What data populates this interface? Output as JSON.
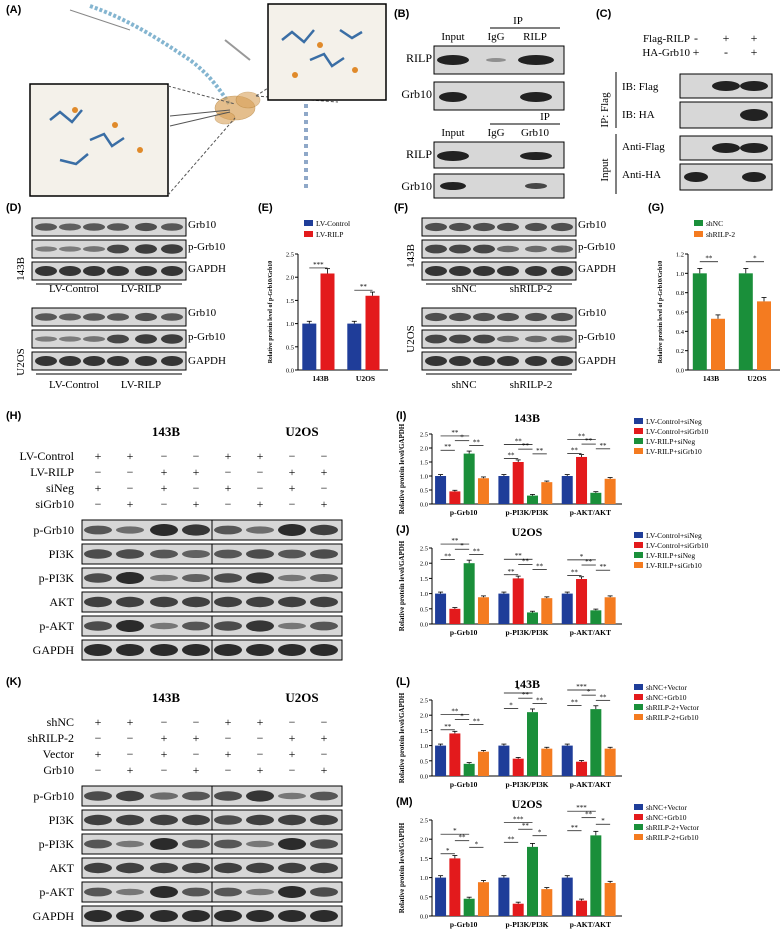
{
  "colors": {
    "blue": "#1f3d99",
    "red": "#e31a1c",
    "green": "#1a8f3a",
    "orange": "#f47b20",
    "band": "#222222",
    "membrane": "#d7d7d7"
  },
  "panel_labels": {
    "A": "(A)",
    "B": "(B)",
    "C": "(C)",
    "D": "(D)",
    "E": "(E)",
    "F": "(F)",
    "G": "(G)",
    "H": "(H)",
    "I": "(I)",
    "J": "(J)",
    "K": "(K)",
    "L": "(L)",
    "M": "(M)"
  },
  "panel_b": {
    "top": {
      "ip": "IP",
      "cols": [
        "Input",
        "IgG",
        "RILP"
      ],
      "rows": [
        "RILP",
        "Grb10"
      ]
    },
    "bottom": {
      "ip": "IP",
      "cols": [
        "Input",
        "IgG",
        "Grb10"
      ],
      "rows": [
        "RILP",
        "Grb10"
      ]
    }
  },
  "panel_c": {
    "conditions": [
      {
        "name": "Flag-RILP",
        "signs": [
          "-",
          "+",
          "+"
        ]
      },
      {
        "name": "HA-Grb10",
        "signs": [
          "+",
          "-",
          "+"
        ]
      }
    ],
    "groups": [
      {
        "name": "IP: Flag",
        "rows": [
          "IB: Flag",
          "IB: HA"
        ]
      },
      {
        "name": "Input",
        "rows": [
          "Anti-Flag",
          "Anti-HA"
        ]
      }
    ]
  },
  "panel_d": {
    "cells": [
      "143B",
      "U2OS"
    ],
    "rows": [
      "Grb10",
      "p-Grb10",
      "GAPDH"
    ],
    "groups": [
      "LV-Control",
      "LV-RILP"
    ]
  },
  "panel_f": {
    "cells": [
      "143B",
      "U2OS"
    ],
    "rows": [
      "Grb10",
      "p-Grb10",
      "GAPDH"
    ],
    "groups": [
      "shNC",
      "shRILP-2"
    ]
  },
  "panel_h": {
    "cells": [
      "143B",
      "U2OS"
    ],
    "conditions": [
      {
        "name": "LV-Control",
        "signs": [
          "+",
          "+",
          "−",
          "−"
        ]
      },
      {
        "name": "LV-RILP",
        "signs": [
          "−",
          "−",
          "+",
          "+"
        ]
      },
      {
        "name": "siNeg",
        "signs": [
          "+",
          "−",
          "+",
          "−"
        ]
      },
      {
        "name": "siGrb10",
        "signs": [
          "−",
          "+",
          "−",
          "+"
        ]
      }
    ],
    "rows": [
      "p-Grb10",
      "PI3K",
      "p-PI3K",
      "AKT",
      "p-AKT",
      "GAPDH"
    ]
  },
  "panel_k": {
    "cells": [
      "143B",
      "U2OS"
    ],
    "conditions": [
      {
        "name": "shNC",
        "signs": [
          "+",
          "+",
          "−",
          "−"
        ]
      },
      {
        "name": "shRILP-2",
        "signs": [
          "−",
          "−",
          "+",
          "+"
        ]
      },
      {
        "name": "Vector",
        "signs": [
          "+",
          "−",
          "+",
          "−"
        ]
      },
      {
        "name": "Grb10",
        "signs": [
          "−",
          "+",
          "−",
          "+"
        ]
      }
    ],
    "rows": [
      "p-Grb10",
      "PI3K",
      "p-PI3K",
      "AKT",
      "p-AKT",
      "GAPDH"
    ]
  },
  "chart_data": [
    {
      "id": "E",
      "type": "bar",
      "title": "",
      "ylabel": "Relative protein level of p-Grb10/Grb10",
      "categories": [
        "143B",
        "U2OS"
      ],
      "series": [
        {
          "name": "LV-Control",
          "values": [
            1.0,
            1.0
          ]
        },
        {
          "name": "LV-RILP",
          "values": [
            2.08,
            1.6
          ]
        }
      ],
      "ylim": [
        0,
        2.5
      ],
      "ticks": [
        "0.0",
        "0.5",
        "1.0",
        "1.5",
        "2.0",
        "2.5"
      ],
      "significance": [
        "***",
        "**"
      ],
      "legend": "top-left"
    },
    {
      "id": "G",
      "type": "bar",
      "title": "",
      "ylabel": "Relative protein level of p-Grb10/Grb10",
      "categories": [
        "143B",
        "U2OS"
      ],
      "series": [
        {
          "name": "shNC",
          "values": [
            1.0,
            1.0
          ]
        },
        {
          "name": "shRILP-2",
          "values": [
            0.53,
            0.71
          ]
        }
      ],
      "ylim": [
        0,
        1.2
      ],
      "ticks": [
        "0.0",
        "0.2",
        "0.4",
        "0.6",
        "0.8",
        "1.0",
        "1.2"
      ],
      "significance": [
        "**",
        "*"
      ],
      "legend": "top-left"
    },
    {
      "id": "I",
      "type": "bar",
      "title": "143B",
      "ylabel": "Relative protein level/GAPDH",
      "categories": [
        "p-Grb10",
        "p-PI3K/PI3K",
        "p-AKT/AKT"
      ],
      "series": [
        {
          "name": "LV-Control+siNeg",
          "values": [
            1.0,
            1.0,
            1.0
          ]
        },
        {
          "name": "LV-Control+siGrb10",
          "values": [
            0.45,
            1.5,
            1.68
          ]
        },
        {
          "name": "LV-RILP+siNeg",
          "values": [
            1.8,
            0.3,
            0.4
          ]
        },
        {
          "name": "LV-RILP+siGrb10",
          "values": [
            0.92,
            0.78,
            0.9
          ]
        }
      ],
      "ylim": [
        0,
        2.5
      ],
      "ticks": [
        "0.0",
        "0.5",
        "1.0",
        "1.5",
        "2.0",
        "2.5"
      ],
      "significance": [
        "**",
        "**",
        "*",
        "**",
        "**",
        "**",
        "**",
        "**",
        "**",
        "**",
        "**",
        "**"
      ],
      "legend": "right"
    },
    {
      "id": "J",
      "type": "bar",
      "title": "U2OS",
      "ylabel": "Relative protein level/GAPDH",
      "categories": [
        "p-Grb10",
        "p-PI3K/PI3K",
        "p-AKT/AKT"
      ],
      "series": [
        {
          "name": "LV-Control+siNeg",
          "values": [
            1.0,
            1.0,
            1.0
          ]
        },
        {
          "name": "LV-Control+siGrb10",
          "values": [
            0.5,
            1.5,
            1.48
          ]
        },
        {
          "name": "LV-RILP+siNeg",
          "values": [
            2.0,
            0.38,
            0.45
          ]
        },
        {
          "name": "LV-RILP+siGrb10",
          "values": [
            0.88,
            0.85,
            0.88
          ]
        }
      ],
      "ylim": [
        0,
        2.5
      ],
      "ticks": [
        "0.0",
        "0.5",
        "1.0",
        "1.5",
        "2.0",
        "2.5"
      ],
      "significance": [
        "**",
        "**",
        "*",
        "**",
        "**",
        "**",
        "**",
        "**",
        "**",
        "**",
        "**",
        "*"
      ],
      "legend": "right"
    },
    {
      "id": "L",
      "type": "bar",
      "title": "143B",
      "ylabel": "Relative protein level/GAPDH",
      "categories": [
        "p-Grb10",
        "p-PI3K/PI3K",
        "p-AKT/AKT"
      ],
      "series": [
        {
          "name": "shNC+Vector",
          "values": [
            1.0,
            1.0,
            1.0
          ]
        },
        {
          "name": "shNC+Grb10",
          "values": [
            1.4,
            0.57,
            0.47
          ]
        },
        {
          "name": "shRILP-2+Vector",
          "values": [
            0.4,
            2.1,
            2.2
          ]
        },
        {
          "name": "shRILP-2+Grb10",
          "values": [
            0.8,
            0.9,
            0.9
          ]
        }
      ],
      "ylim": [
        0,
        2.5
      ],
      "ticks": [
        "0.0",
        "0.5",
        "1.0",
        "1.5",
        "2.0",
        "2.5"
      ],
      "significance": [
        "**",
        "**",
        "*",
        "**",
        "*",
        "**",
        "**",
        "*",
        "**",
        "**",
        "*",
        "***"
      ],
      "legend": "right"
    },
    {
      "id": "M",
      "type": "bar",
      "title": "U2OS",
      "ylabel": "Relative protein level/GAPDH",
      "categories": [
        "p-Grb10",
        "p-PI3K/PI3K",
        "p-AKT/AKT"
      ],
      "series": [
        {
          "name": "shNC+Vector",
          "values": [
            1.0,
            1.0,
            1.0
          ]
        },
        {
          "name": "shNC+Grb10",
          "values": [
            1.5,
            0.32,
            0.4
          ]
        },
        {
          "name": "shRILP-2+Vector",
          "values": [
            0.45,
            1.8,
            2.1
          ]
        },
        {
          "name": "shRILP-2+Grb10",
          "values": [
            0.88,
            0.7,
            0.86
          ]
        }
      ],
      "ylim": [
        0,
        2.5
      ],
      "ticks": [
        "0.0",
        "0.5",
        "1.0",
        "1.5",
        "2.0",
        "2.5"
      ],
      "significance": [
        "*",
        "*",
        "**",
        "*",
        "**",
        "*",
        "**",
        "***",
        "**",
        "*",
        "**",
        "***"
      ],
      "legend": "right"
    }
  ]
}
